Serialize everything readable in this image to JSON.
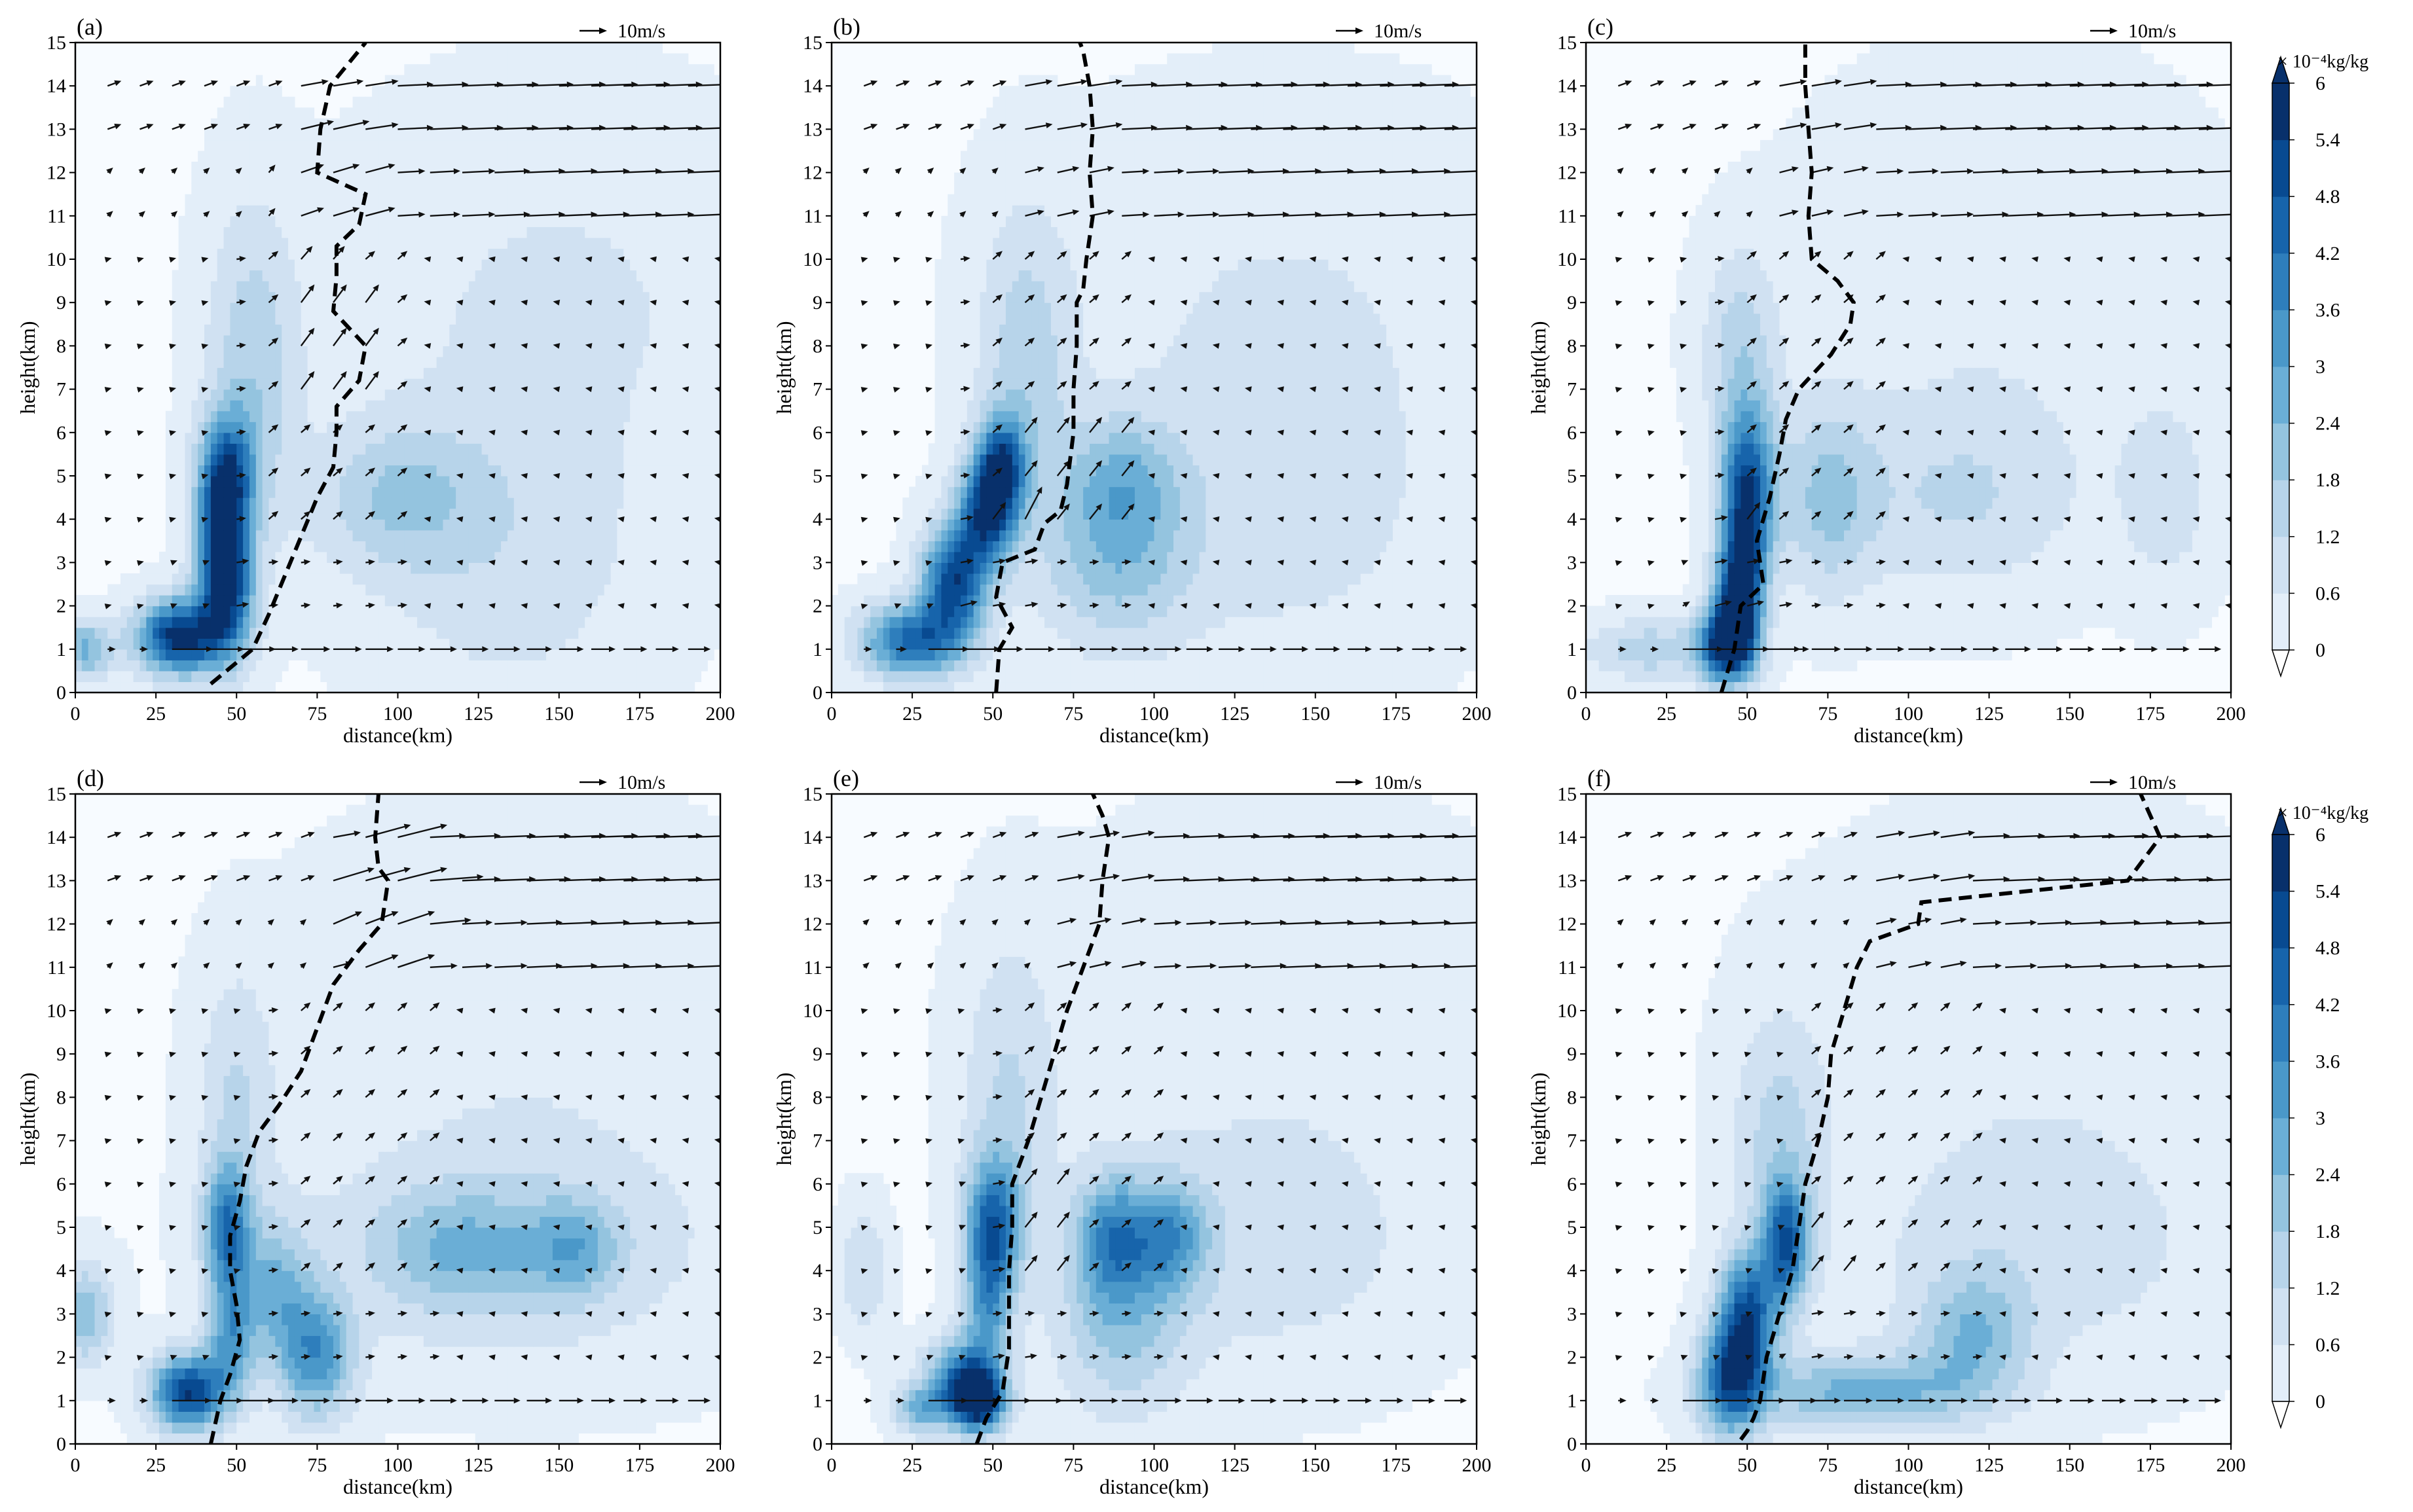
{
  "figure": {
    "colors": {
      "background": "#ffffff",
      "axis": "#000000",
      "levels": [
        "#f7fbff",
        "#e3eef9",
        "#d0e1f2",
        "#b7d4ea",
        "#94c4df",
        "#6aaed6",
        "#4a98c9",
        "#2e7ebc",
        "#1764ab",
        "#084a91",
        "#08306b"
      ]
    },
    "colorbar": {
      "unit_label": "× 10⁻⁴kg/kg",
      "ticks": [
        "0",
        "0.6",
        "1.2",
        "1.8",
        "2.4",
        "3",
        "3.6",
        "4.2",
        "4.8",
        "5.4",
        "6"
      ]
    }
  },
  "chart_data": [
    {
      "type": "contourf",
      "panel_label": "(a)",
      "xlabel": "distance(km)",
      "ylabel": "height(km)",
      "xlim": [
        0,
        200
      ],
      "ylim": [
        0,
        15
      ],
      "x_ticks": [
        "0",
        "25",
        "50",
        "75",
        "100",
        "125",
        "150",
        "175",
        "200"
      ],
      "y_ticks": [
        "0",
        "1",
        "2",
        "3",
        "4",
        "5",
        "6",
        "7",
        "8",
        "9",
        "10",
        "11",
        "12",
        "13",
        "14",
        "15"
      ],
      "reference_vector": "10m/s",
      "blobs": [
        {
          "x": 32,
          "y": 1.3,
          "sx": 9,
          "sy": 0.6,
          "a": 5.8
        },
        {
          "x": 47,
          "y": 2.3,
          "sx": 6,
          "sy": 1.1,
          "a": 4.6
        },
        {
          "x": 47,
          "y": 5.0,
          "sx": 6,
          "sy": 1.0,
          "a": 4.4
        },
        {
          "x": 45,
          "y": 3.6,
          "sx": 5,
          "sy": 1.0,
          "a": 3.0
        },
        {
          "x": 55,
          "y": 7.5,
          "sx": 10,
          "sy": 2.6,
          "a": 1.6
        },
        {
          "x": 100,
          "y": 4.5,
          "sx": 18,
          "sy": 1.2,
          "a": 1.6
        },
        {
          "x": 135,
          "y": 3.0,
          "sx": 30,
          "sy": 2.5,
          "a": 0.9
        },
        {
          "x": 150,
          "y": 9.0,
          "sx": 45,
          "sy": 3.0,
          "a": 0.7
        },
        {
          "x": 3,
          "y": 1.0,
          "sx": 6,
          "sy": 0.5,
          "a": 2.5
        }
      ],
      "boundary": [
        [
          42,
          0.2
        ],
        [
          55,
          1.0
        ],
        [
          60,
          1.8
        ],
        [
          65,
          2.7
        ],
        [
          70,
          3.6
        ],
        [
          75,
          4.5
        ],
        [
          80,
          5.2
        ],
        [
          81,
          6.0
        ],
        [
          81,
          6.6
        ],
        [
          88,
          7.2
        ],
        [
          90,
          8.0
        ],
        [
          80,
          8.8
        ],
        [
          81,
          9.6
        ],
        [
          81,
          10.3
        ],
        [
          88,
          10.8
        ],
        [
          90,
          11.5
        ],
        [
          75,
          12.0
        ],
        [
          76,
          13.0
        ],
        [
          79,
          14.0
        ],
        [
          90,
          15.0
        ]
      ],
      "vec_mid_x": 80,
      "vec_boost": [
        [
          80,
          8.0,
          2.0
        ],
        [
          40,
          1.5,
          1.5
        ],
        [
          75,
          11.5,
          1.0
        ]
      ]
    },
    {
      "type": "contourf",
      "panel_label": "(b)",
      "xlabel": "distance(km)",
      "ylabel": "height(km)",
      "xlim": [
        0,
        200
      ],
      "ylim": [
        0,
        15
      ],
      "x_ticks": [
        "0",
        "25",
        "50",
        "75",
        "100",
        "125",
        "150",
        "175",
        "200"
      ],
      "y_ticks": [
        "0",
        "1",
        "2",
        "3",
        "4",
        "5",
        "6",
        "7",
        "8",
        "9",
        "10",
        "11",
        "12",
        "13",
        "14",
        "15"
      ],
      "reference_vector": "10m/s",
      "blobs": [
        {
          "x": 25,
          "y": 1.2,
          "sx": 11,
          "sy": 0.6,
          "a": 4.4
        },
        {
          "x": 38,
          "y": 2.6,
          "sx": 7,
          "sy": 0.9,
          "a": 5.0
        },
        {
          "x": 48,
          "y": 4.2,
          "sx": 6,
          "sy": 0.9,
          "a": 4.6
        },
        {
          "x": 53,
          "y": 5.2,
          "sx": 5,
          "sy": 0.8,
          "a": 4.0
        },
        {
          "x": 60,
          "y": 7.5,
          "sx": 10,
          "sy": 2.5,
          "a": 1.5
        },
        {
          "x": 88,
          "y": 3.2,
          "sx": 16,
          "sy": 1.5,
          "a": 2.0
        },
        {
          "x": 90,
          "y": 5.0,
          "sx": 12,
          "sy": 1.0,
          "a": 1.5
        },
        {
          "x": 140,
          "y": 4.0,
          "sx": 35,
          "sy": 2.5,
          "a": 0.8
        },
        {
          "x": 140,
          "y": 9.0,
          "sx": 50,
          "sy": 3.0,
          "a": 0.6
        }
      ],
      "boundary": [
        [
          51,
          0.0
        ],
        [
          52,
          1.0
        ],
        [
          56,
          1.5
        ],
        [
          51,
          2.2
        ],
        [
          53,
          3.0
        ],
        [
          63,
          3.3
        ],
        [
          66,
          3.9
        ],
        [
          71,
          4.2
        ],
        [
          73,
          4.8
        ],
        [
          75,
          6.0
        ],
        [
          75,
          7.0
        ],
        [
          76,
          8.0
        ],
        [
          76,
          9.0
        ],
        [
          78,
          9.3
        ],
        [
          79,
          10.0
        ],
        [
          81,
          11.0
        ],
        [
          80,
          12.0
        ],
        [
          81,
          13.0
        ],
        [
          80,
          14.0
        ],
        [
          78,
          14.8
        ],
        [
          77,
          15.0
        ]
      ],
      "vec_mid_x": 70,
      "vec_boost": [
        [
          50,
          3.0,
          1.8
        ],
        [
          30,
          1.2,
          1.5
        ],
        [
          75,
          5.0,
          1.5
        ]
      ]
    },
    {
      "type": "contourf",
      "panel_label": "(c)",
      "xlabel": "distance(km)",
      "ylabel": "height(km)",
      "xlim": [
        0,
        200
      ],
      "ylim": [
        0,
        15
      ],
      "x_ticks": [
        "0",
        "25",
        "50",
        "75",
        "100",
        "125",
        "150",
        "175",
        "200"
      ],
      "y_ticks": [
        "0",
        "1",
        "2",
        "3",
        "4",
        "5",
        "6",
        "7",
        "8",
        "9",
        "10",
        "11",
        "12",
        "13",
        "14",
        "15"
      ],
      "reference_vector": "10m/s",
      "blobs": [
        {
          "x": 44,
          "y": 1.1,
          "sx": 6,
          "sy": 0.6,
          "a": 5.8
        },
        {
          "x": 47,
          "y": 2.2,
          "sx": 5,
          "sy": 0.9,
          "a": 5.0
        },
        {
          "x": 50,
          "y": 5.0,
          "sx": 6,
          "sy": 1.2,
          "a": 4.0
        },
        {
          "x": 50,
          "y": 3.5,
          "sx": 5,
          "sy": 1.0,
          "a": 3.0
        },
        {
          "x": 48,
          "y": 8.0,
          "sx": 8,
          "sy": 1.5,
          "a": 1.5
        },
        {
          "x": 75,
          "y": 4.5,
          "sx": 10,
          "sy": 1.5,
          "a": 1.8
        },
        {
          "x": 115,
          "y": 4.5,
          "sx": 25,
          "sy": 1.5,
          "a": 1.1
        },
        {
          "x": 180,
          "y": 4.5,
          "sx": 10,
          "sy": 1.5,
          "a": 0.9
        },
        {
          "x": 130,
          "y": 9.0,
          "sx": 45,
          "sy": 3.5,
          "a": 0.5
        },
        {
          "x": 20,
          "y": 1.0,
          "sx": 14,
          "sy": 0.5,
          "a": 1.6
        }
      ],
      "boundary": [
        [
          42,
          0.0
        ],
        [
          46,
          1.0
        ],
        [
          48,
          2.0
        ],
        [
          55,
          2.5
        ],
        [
          53,
          3.5
        ],
        [
          57,
          4.5
        ],
        [
          60,
          5.5
        ],
        [
          62,
          6.3
        ],
        [
          66,
          7.0
        ],
        [
          76,
          7.8
        ],
        [
          82,
          8.5
        ],
        [
          83,
          9.0
        ],
        [
          78,
          9.5
        ],
        [
          70,
          10.0
        ],
        [
          69,
          11.0
        ],
        [
          70,
          12.0
        ],
        [
          69,
          13.0
        ],
        [
          68,
          14.0
        ],
        [
          68,
          15.0
        ]
      ],
      "vec_mid_x": 70,
      "vec_boost": [
        [
          48,
          2.5,
          1.8
        ],
        [
          40,
          1.0,
          1.5
        ]
      ]
    },
    {
      "type": "contourf",
      "panel_label": "(d)",
      "xlabel": "distance(km)",
      "ylabel": "height(km)",
      "xlim": [
        0,
        200
      ],
      "ylim": [
        0,
        15
      ],
      "x_ticks": [
        "0",
        "25",
        "50",
        "75",
        "100",
        "125",
        "150",
        "175",
        "200"
      ],
      "y_ticks": [
        "0",
        "1",
        "2",
        "3",
        "4",
        "5",
        "6",
        "7",
        "8",
        "9",
        "10",
        "11",
        "12",
        "13",
        "14",
        "15"
      ],
      "reference_vector": "10m/s",
      "blobs": [
        {
          "x": 35,
          "y": 1.2,
          "sx": 8,
          "sy": 0.6,
          "a": 5.4
        },
        {
          "x": 47,
          "y": 5.0,
          "sx": 5,
          "sy": 1.0,
          "a": 3.8
        },
        {
          "x": 48,
          "y": 2.5,
          "sx": 5,
          "sy": 1.0,
          "a": 2.8
        },
        {
          "x": 75,
          "y": 2.0,
          "sx": 8,
          "sy": 1.0,
          "a": 3.2
        },
        {
          "x": 62,
          "y": 3.5,
          "sx": 8,
          "sy": 1.2,
          "a": 2.2
        },
        {
          "x": 120,
          "y": 4.5,
          "sx": 20,
          "sy": 1.0,
          "a": 1.8
        },
        {
          "x": 155,
          "y": 4.5,
          "sx": 10,
          "sy": 0.8,
          "a": 1.8
        },
        {
          "x": 140,
          "y": 4.5,
          "sx": 50,
          "sy": 2.0,
          "a": 0.9
        },
        {
          "x": 50,
          "y": 8.0,
          "sx": 8,
          "sy": 2.0,
          "a": 1.2
        },
        {
          "x": 3,
          "y": 3.0,
          "sx": 6,
          "sy": 0.8,
          "a": 2.2
        },
        {
          "x": 140,
          "y": 10.0,
          "sx": 50,
          "sy": 3.0,
          "a": 0.5
        }
      ],
      "boundary": [
        [
          42,
          0.0
        ],
        [
          45,
          1.0
        ],
        [
          48,
          1.6
        ],
        [
          51,
          2.4
        ],
        [
          50,
          3.2
        ],
        [
          48,
          4.0
        ],
        [
          48,
          4.8
        ],
        [
          51,
          5.6
        ],
        [
          53,
          6.4
        ],
        [
          57,
          7.2
        ],
        [
          63,
          7.8
        ],
        [
          70,
          8.6
        ],
        [
          75,
          9.6
        ],
        [
          80,
          10.6
        ],
        [
          88,
          11.4
        ],
        [
          95,
          12.0
        ],
        [
          97,
          13.0
        ],
        [
          94,
          13.3
        ],
        [
          93,
          14.0
        ],
        [
          94,
          15.0
        ]
      ],
      "vec_mid_x": 90,
      "vec_boost": [
        [
          95,
          12.5,
          2.5
        ],
        [
          40,
          1.2,
          1.3
        ]
      ]
    },
    {
      "type": "contourf",
      "panel_label": "(e)",
      "xlabel": "distance(km)",
      "ylabel": "height(km)",
      "xlim": [
        0,
        200
      ],
      "ylim": [
        0,
        15
      ],
      "x_ticks": [
        "0",
        "25",
        "50",
        "75",
        "100",
        "125",
        "150",
        "175",
        "200"
      ],
      "y_ticks": [
        "0",
        "1",
        "2",
        "3",
        "4",
        "5",
        "6",
        "7",
        "8",
        "9",
        "10",
        "11",
        "12",
        "13",
        "14",
        "15"
      ],
      "reference_vector": "10m/s",
      "blobs": [
        {
          "x": 45,
          "y": 1.0,
          "sx": 6,
          "sy": 0.5,
          "a": 6.0
        },
        {
          "x": 40,
          "y": 1.6,
          "sx": 8,
          "sy": 0.6,
          "a": 3.2
        },
        {
          "x": 28,
          "y": 0.8,
          "sx": 6,
          "sy": 0.4,
          "a": 2.5
        },
        {
          "x": 50,
          "y": 5.0,
          "sx": 6,
          "sy": 1.1,
          "a": 4.2
        },
        {
          "x": 48,
          "y": 3.0,
          "sx": 5,
          "sy": 1.0,
          "a": 2.5
        },
        {
          "x": 87,
          "y": 4.8,
          "sx": 8,
          "sy": 1.0,
          "a": 3.0
        },
        {
          "x": 105,
          "y": 4.8,
          "sx": 8,
          "sy": 0.9,
          "a": 2.6
        },
        {
          "x": 90,
          "y": 2.8,
          "sx": 14,
          "sy": 1.5,
          "a": 1.8
        },
        {
          "x": 135,
          "y": 4.5,
          "sx": 35,
          "sy": 2.0,
          "a": 0.9
        },
        {
          "x": 55,
          "y": 8.0,
          "sx": 10,
          "sy": 2.5,
          "a": 1.2
        },
        {
          "x": 10,
          "y": 4.0,
          "sx": 5,
          "sy": 1.0,
          "a": 1.2
        },
        {
          "x": 140,
          "y": 10.0,
          "sx": 50,
          "sy": 3.0,
          "a": 0.45
        }
      ],
      "boundary": [
        [
          45,
          0.0
        ],
        [
          48,
          0.6
        ],
        [
          53,
          1.2
        ],
        [
          55,
          2.2
        ],
        [
          55,
          3.0
        ],
        [
          55,
          4.0
        ],
        [
          56,
          5.0
        ],
        [
          56,
          6.0
        ],
        [
          61,
          7.0
        ],
        [
          65,
          8.0
        ],
        [
          69,
          9.0
        ],
        [
          73,
          10.0
        ],
        [
          78,
          11.0
        ],
        [
          83,
          12.0
        ],
        [
          84,
          13.0
        ],
        [
          86,
          14.0
        ],
        [
          84,
          14.5
        ],
        [
          81,
          15.0
        ]
      ],
      "vec_mid_x": 80,
      "vec_boost": [
        [
          55,
          5.0,
          1.5
        ],
        [
          45,
          1.2,
          1.3
        ]
      ]
    },
    {
      "type": "contourf",
      "panel_label": "(f)",
      "xlabel": "distance(km)",
      "ylabel": "height(km)",
      "xlim": [
        0,
        200
      ],
      "ylim": [
        0,
        15
      ],
      "x_ticks": [
        "0",
        "25",
        "50",
        "75",
        "100",
        "125",
        "150",
        "175",
        "200"
      ],
      "y_ticks": [
        "0",
        "1",
        "2",
        "3",
        "4",
        "5",
        "6",
        "7",
        "8",
        "9",
        "10",
        "11",
        "12",
        "13",
        "14",
        "15"
      ],
      "reference_vector": "10m/s",
      "blobs": [
        {
          "x": 45,
          "y": 1.5,
          "sx": 7,
          "sy": 0.9,
          "a": 4.4
        },
        {
          "x": 50,
          "y": 3.0,
          "sx": 6,
          "sy": 1.0,
          "a": 4.4
        },
        {
          "x": 62,
          "y": 4.6,
          "sx": 5,
          "sy": 1.0,
          "a": 4.2
        },
        {
          "x": 85,
          "y": 1.2,
          "sx": 25,
          "sy": 0.6,
          "a": 2.6
        },
        {
          "x": 120,
          "y": 2.5,
          "sx": 12,
          "sy": 1.0,
          "a": 2.0
        },
        {
          "x": 140,
          "y": 4.5,
          "sx": 40,
          "sy": 2.0,
          "a": 0.9
        },
        {
          "x": 60,
          "y": 7.0,
          "sx": 10,
          "sy": 2.0,
          "a": 1.4
        },
        {
          "x": 140,
          "y": 10.0,
          "sx": 50,
          "sy": 3.0,
          "a": 0.45
        }
      ],
      "boundary": [
        [
          48,
          0.1
        ],
        [
          50,
          0.3
        ],
        [
          52,
          0.6
        ],
        [
          54,
          1.0
        ],
        [
          56,
          2.0
        ],
        [
          60,
          3.0
        ],
        [
          64,
          4.0
        ],
        [
          66,
          5.0
        ],
        [
          68,
          6.0
        ],
        [
          72,
          7.0
        ],
        [
          75,
          8.0
        ],
        [
          76,
          9.0
        ],
        [
          80,
          10.0
        ],
        [
          84,
          11.0
        ],
        [
          88,
          11.6
        ],
        [
          103,
          12.0
        ],
        [
          104,
          12.5
        ],
        [
          168,
          13.0
        ],
        [
          178,
          14.0
        ],
        [
          172,
          15.0
        ]
      ],
      "vec_mid_x": 95,
      "vec_boost": [
        [
          62,
          3.5,
          1.5
        ],
        [
          45,
          1.0,
          1.3
        ]
      ]
    }
  ]
}
